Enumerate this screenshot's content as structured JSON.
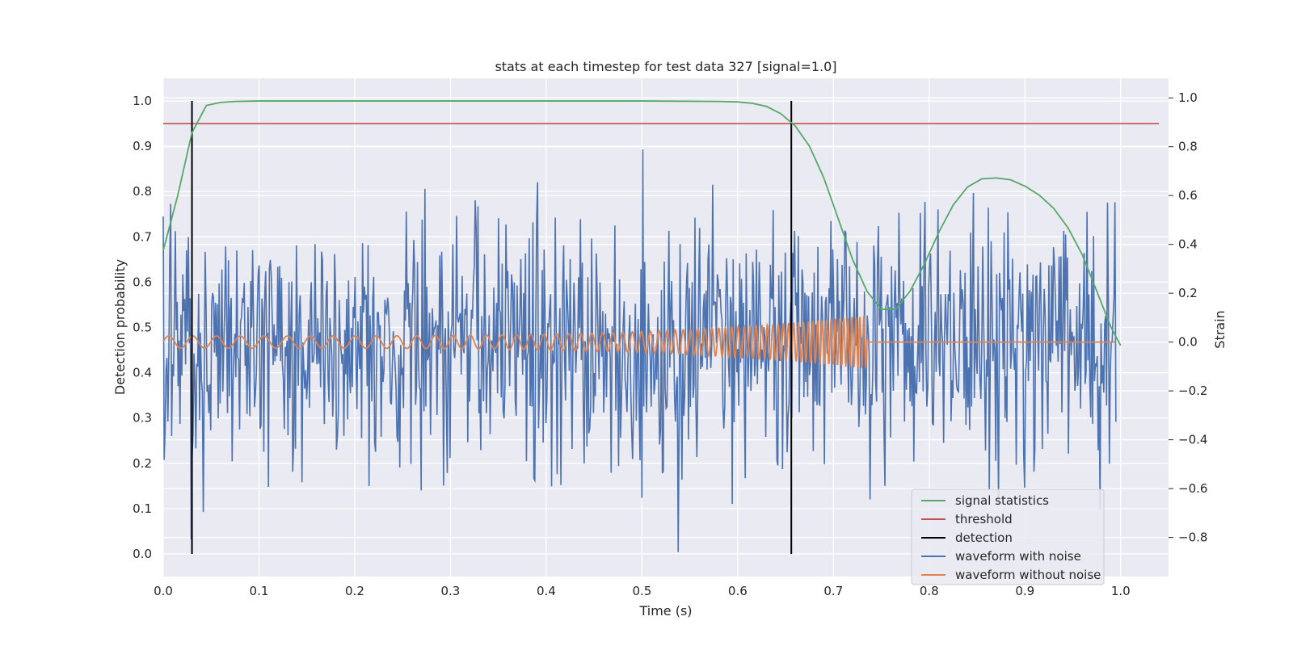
{
  "chart_data": {
    "type": "line",
    "title": "stats at each timestep for test data 327 [signal=1.0]",
    "xlabel": "Time (s)",
    "ylabel_left": "Detection probability",
    "ylabel_right": "Strain",
    "xlim": [
      0.0,
      1.05
    ],
    "ylim_left": [
      -0.05,
      1.05
    ],
    "ylim_right": [
      -0.96,
      1.08
    ],
    "x_ticks": [
      "0.0",
      "0.1",
      "0.2",
      "0.3",
      "0.4",
      "0.5",
      "0.6",
      "0.7",
      "0.8",
      "0.9",
      "1.0"
    ],
    "y_ticks_left": [
      "0.0",
      "0.1",
      "0.2",
      "0.3",
      "0.4",
      "0.5",
      "0.6",
      "0.7",
      "0.8",
      "0.9",
      "1.0"
    ],
    "y_ticks_right": [
      "−0.8",
      "−0.6",
      "−0.4",
      "−0.2",
      "0.0",
      "0.2",
      "0.4",
      "0.6",
      "0.8",
      "1.0"
    ],
    "grid": true,
    "legend_position": "lower-right",
    "legend": [
      {
        "label": "signal statistics",
        "color": "#55a868"
      },
      {
        "label": "threshold",
        "color": "#c44e52"
      },
      {
        "label": "detection",
        "color": "#000000"
      },
      {
        "label": "waveform with noise",
        "color": "#4c72b0"
      },
      {
        "label": "waveform without noise",
        "color": "#dd8452"
      }
    ],
    "signal_statistics": {
      "axis": "left",
      "x": [
        0.0,
        0.015,
        0.03,
        0.045,
        0.06,
        0.075,
        0.1,
        0.2,
        0.3,
        0.4,
        0.5,
        0.58,
        0.6,
        0.615,
        0.63,
        0.645,
        0.66,
        0.675,
        0.69,
        0.705,
        0.72,
        0.735,
        0.75,
        0.765,
        0.78,
        0.795,
        0.81,
        0.825,
        0.84,
        0.855,
        0.87,
        0.885,
        0.9,
        0.915,
        0.93,
        0.945,
        0.96,
        0.975,
        0.99,
        1.0
      ],
      "y": [
        0.67,
        0.79,
        0.93,
        0.99,
        0.997,
        0.999,
        1.0,
        1.0,
        1.0,
        1.0,
        1.0,
        0.999,
        0.998,
        0.995,
        0.988,
        0.972,
        0.945,
        0.9,
        0.83,
        0.74,
        0.65,
        0.58,
        0.54,
        0.54,
        0.58,
        0.64,
        0.71,
        0.77,
        0.81,
        0.828,
        0.83,
        0.826,
        0.812,
        0.792,
        0.763,
        0.72,
        0.66,
        0.58,
        0.5,
        0.46
      ]
    },
    "threshold": {
      "axis": "left",
      "value": 0.95,
      "x_range": [
        0.0,
        1.04
      ]
    },
    "detections": {
      "axis": "left",
      "x": [
        0.03,
        0.656
      ],
      "y_range": [
        0.0,
        1.0
      ]
    },
    "waveform_with_noise": {
      "axis": "right",
      "description_stats": {
        "x_range": [
          0.0,
          0.995
        ],
        "sample_count": 1024,
        "approx_std": 0.26,
        "y_min": -0.86,
        "y_max": 1.0
      }
    },
    "waveform_without_noise": {
      "axis": "right",
      "description_stats": {
        "x_range": [
          0.0,
          0.995
        ],
        "chirp_end": 0.735,
        "amplitude_start": 0.025,
        "amplitude_end": 0.11,
        "frequency_start_hz": 40,
        "frequency_end_hz": 250
      }
    }
  }
}
